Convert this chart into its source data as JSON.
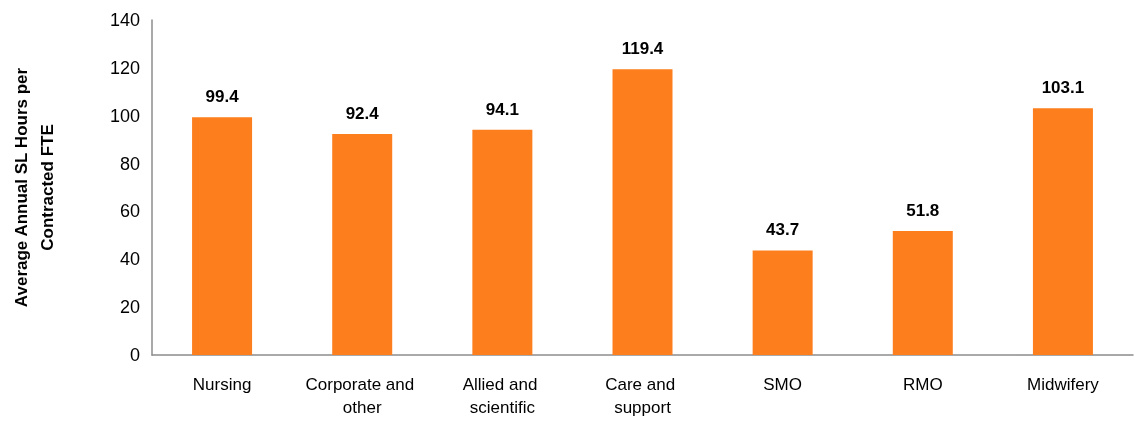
{
  "chart_data": {
    "type": "bar",
    "ylabel": "Average Annual SL Hours per Contracted FTE",
    "categories": [
      "Nursing",
      "Corporate and other",
      "Allied and scientific",
      "Care and support",
      "SMO",
      "RMO",
      "Midwifery"
    ],
    "values": [
      99.4,
      92.4,
      94.1,
      119.4,
      43.7,
      51.8,
      103.1
    ],
    "color": "#fd7e1c",
    "ylim": [
      0,
      140
    ],
    "yticks": [
      0,
      20,
      40,
      60,
      80,
      100,
      120,
      140
    ],
    "data_labels": true,
    "grid": false
  }
}
